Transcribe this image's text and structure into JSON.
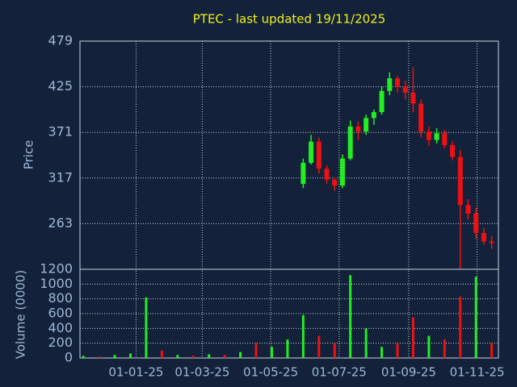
{
  "chart_data": {
    "type": "candlestick",
    "title": "PTEC - last updated 19/11/2025",
    "ylabel": "Price",
    "y2label": "Volume (0000)",
    "xlim": [
      "2024-11-12",
      "2025-11-20"
    ],
    "xticks": [
      {
        "value": "2025-01-01",
        "label": "01-01-25"
      },
      {
        "value": "2025-03-01",
        "label": "01-03-25"
      },
      {
        "value": "2025-05-01",
        "label": "01-05-25"
      },
      {
        "value": "2025-07-01",
        "label": "01-07-25"
      },
      {
        "value": "2025-09-01",
        "label": "01-09-25"
      },
      {
        "value": "2025-11-01",
        "label": "01-11-25"
      }
    ],
    "ylim": [
      209,
      479
    ],
    "yticks": [
      263,
      317,
      371,
      425,
      479
    ],
    "y2lim": [
      0,
      1200
    ],
    "y2ticks": [
      0,
      200,
      400,
      600,
      800,
      1000,
      1200
    ],
    "grid": true,
    "up_color": "#22ee22",
    "down_color": "#ee1111",
    "x": [
      "2025-05-30",
      "2025-06-06",
      "2025-06-13",
      "2025-06-20",
      "2025-06-27",
      "2025-07-04",
      "2025-07-11",
      "2025-07-18",
      "2025-07-25",
      "2025-08-01",
      "2025-08-08",
      "2025-08-15",
      "2025-08-22",
      "2025-08-29",
      "2025-09-05",
      "2025-09-12",
      "2025-09-19",
      "2025-09-26",
      "2025-10-03",
      "2025-10-10",
      "2025-10-17",
      "2025-10-24",
      "2025-10-31",
      "2025-11-07",
      "2025-11-14"
    ],
    "open": [
      310,
      335,
      360,
      328,
      315,
      308,
      340,
      378,
      372,
      388,
      395,
      420,
      435,
      425,
      418,
      405,
      372,
      362,
      370,
      356,
      342,
      285,
      275,
      252,
      242
    ],
    "high": [
      340,
      368,
      365,
      332,
      318,
      345,
      385,
      384,
      392,
      398,
      425,
      442,
      438,
      432,
      448,
      410,
      378,
      376,
      374,
      360,
      350,
      292,
      282,
      258,
      248
    ],
    "low": [
      305,
      333,
      322,
      310,
      302,
      305,
      338,
      362,
      368,
      380,
      392,
      415,
      418,
      410,
      395,
      365,
      355,
      358,
      352,
      338,
      210,
      268,
      245,
      238,
      233
    ],
    "close": [
      335,
      360,
      328,
      315,
      308,
      340,
      378,
      372,
      388,
      395,
      420,
      435,
      425,
      418,
      405,
      372,
      362,
      370,
      356,
      342,
      285,
      275,
      252,
      242,
      240
    ],
    "volume": {
      "x": [
        "2024-11-15",
        "2024-11-29",
        "2024-12-13",
        "2024-12-27",
        "2025-01-10",
        "2025-01-24",
        "2025-02-07",
        "2025-02-21",
        "2025-03-07",
        "2025-03-21",
        "2025-04-04",
        "2025-04-18",
        "2025-05-02",
        "2025-05-16",
        "2025-05-30",
        "2025-06-13",
        "2025-06-27",
        "2025-07-11",
        "2025-07-25",
        "2025-08-08",
        "2025-08-22",
        "2025-09-05",
        "2025-09-19",
        "2025-10-03",
        "2025-10-17",
        "2025-10-31",
        "2025-11-14"
      ],
      "values": [
        30,
        20,
        40,
        60,
        820,
        100,
        40,
        30,
        50,
        40,
        80,
        200,
        150,
        250,
        580,
        300,
        200,
        1120,
        400,
        150,
        200,
        550,
        300,
        250,
        830,
        1100,
        200
      ],
      "colors": [
        "#22ee22",
        "#ee1111",
        "#22ee22",
        "#22ee22",
        "#22ee22",
        "#ee1111",
        "#22ee22",
        "#ee1111",
        "#22ee22",
        "#ee1111",
        "#22ee22",
        "#ee1111",
        "#22ee22",
        "#22ee22",
        "#22ee22",
        "#ee1111",
        "#ee1111",
        "#22ee22",
        "#22ee22",
        "#22ee22",
        "#ee1111",
        "#ee1111",
        "#22ee22",
        "#ee1111",
        "#ee1111",
        "#22ee22",
        "#ee1111"
      ]
    }
  }
}
